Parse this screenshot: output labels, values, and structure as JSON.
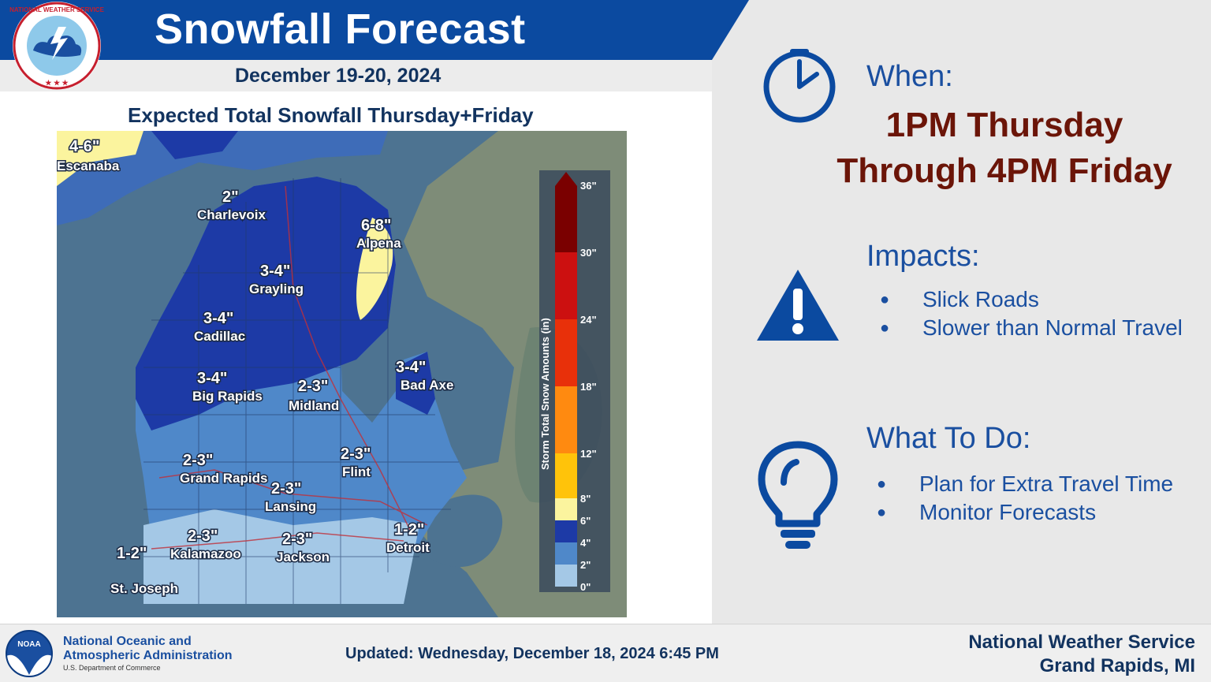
{
  "header": {
    "title": "Snowfall Forecast",
    "date": "December 19-20, 2024",
    "logo_text": "NATIONAL WEATHER SERVICE"
  },
  "map": {
    "title": "Expected Total Snowfall Thursday+Friday",
    "legend_title": "Storm Total Snow Amounts (in)",
    "legend_ticks": [
      "36\"",
      "30\"",
      "24\"",
      "18\"",
      "12\"",
      "8\"",
      "6\"",
      "4\"",
      "2\"",
      "0\""
    ],
    "colors": {
      "water": "#4d7391",
      "land_0_2": "#a4c8e6",
      "land_2_4": "#4f88c9",
      "land_4_6": "#1d3aa6",
      "land_6_8": "#fbf49e",
      "outside_land": "#7e8c78"
    },
    "labels": [
      {
        "value": "4-6\"",
        "city": "Escanaba"
      },
      {
        "value": "2\"",
        "city": "Charlevoix"
      },
      {
        "value": "6-8\"",
        "city": "Alpena"
      },
      {
        "value": "3-4\"",
        "city": "Grayling"
      },
      {
        "value": "3-4\"",
        "city": "Cadillac"
      },
      {
        "value": "3-4\"",
        "city": "Big Rapids"
      },
      {
        "value": "2-3\"",
        "city": "Midland"
      },
      {
        "value": "3-4\"",
        "city": "Bad Axe"
      },
      {
        "value": "2-3\"",
        "city": "Grand Rapids"
      },
      {
        "value": "2-3\"",
        "city": "Flint"
      },
      {
        "value": "2-3\"",
        "city": "Lansing"
      },
      {
        "value": "1-2\"",
        "city": "Detroit"
      },
      {
        "value": "2-3\"",
        "city": "Kalamazoo"
      },
      {
        "value": "2-3\"",
        "city": "Jackson"
      },
      {
        "value": "1-2\"",
        "city": "St. Joseph"
      }
    ]
  },
  "when": {
    "heading": "When:",
    "line1": "1PM Thursday",
    "line2": "Through 4PM Friday"
  },
  "impacts": {
    "heading": "Impacts:",
    "items": [
      "Slick Roads",
      "Slower than Normal Travel"
    ]
  },
  "what_to_do": {
    "heading": "What To Do:",
    "items": [
      "Plan for Extra Travel Time",
      "Monitor Forecasts"
    ]
  },
  "footer": {
    "noaa_line1": "National Oceanic and",
    "noaa_line2": "Atmospheric Administration",
    "noaa_sub": "U.S. Department of Commerce",
    "noaa_logo_text": "NOAA",
    "updated": "Updated: Wednesday, December 18, 2024 6:45 PM",
    "office_line1": "National Weather Service",
    "office_line2": "Grand Rapids, MI"
  },
  "icons": {
    "when": "clock-icon",
    "impacts": "warning-icon",
    "what_to_do": "lightbulb-icon"
  }
}
